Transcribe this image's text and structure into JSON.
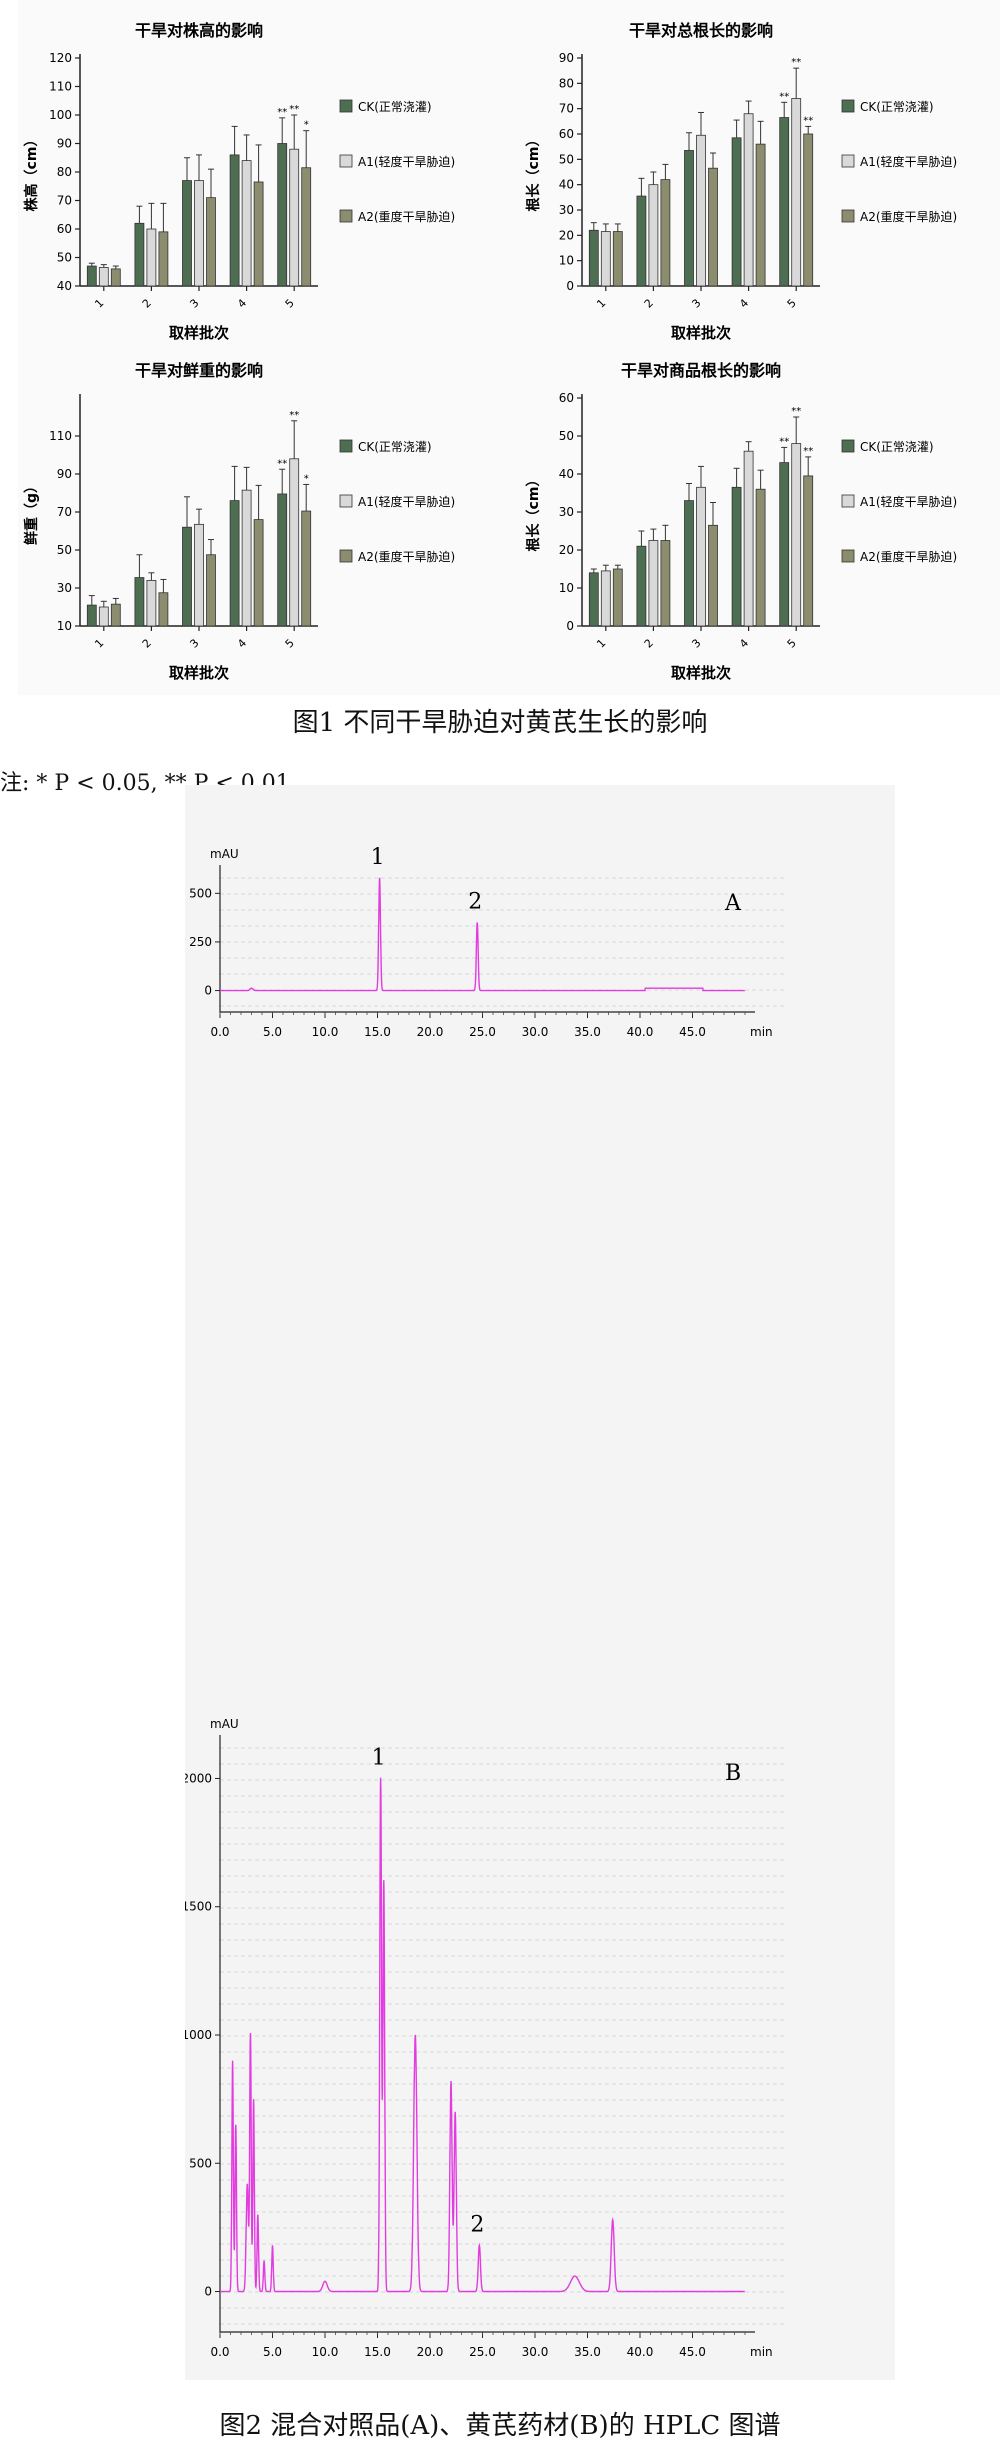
{
  "figure1": {
    "caption": "图1  不同干旱胁迫对黄芪生长的影响",
    "note": "注: * P < 0.05, ** P < 0.01",
    "legend": [
      "CK(正常浇灌)",
      "A1(轻度干旱胁迫)",
      "A2(重度干旱胁迫)"
    ],
    "colors": {
      "CK": "#4e6e52",
      "A1": "#d9d9d9",
      "A2": "#8c8c6e"
    }
  },
  "figure2": {
    "caption": "图2  混合对照品(A)、黄芪药材(B)的 HPLC 图谱",
    "colors": {
      "trace": "#e23be0"
    }
  },
  "chart_data": [
    {
      "type": "bar",
      "title": "干旱对株高的影响",
      "xlabel": "取样批次",
      "ylabel": "株高（cm）",
      "categories": [
        "1",
        "2",
        "3",
        "4",
        "5"
      ],
      "ylim": [
        40,
        120
      ],
      "yticks": [
        40,
        50,
        60,
        70,
        80,
        90,
        100,
        110,
        120
      ],
      "series": [
        {
          "name": "CK(正常浇灌)",
          "values": [
            47,
            62,
            77,
            86,
            90
          ],
          "errors": [
            1,
            6,
            8,
            10,
            9
          ],
          "marks": [
            "",
            "",
            "",
            "",
            "**"
          ]
        },
        {
          "name": "A1(轻度干旱胁迫)",
          "values": [
            46.5,
            60,
            77,
            84,
            88
          ],
          "errors": [
            1,
            9,
            9,
            9,
            12
          ],
          "marks": [
            "",
            "",
            "",
            "",
            "**"
          ]
        },
        {
          "name": "A2(重度干旱胁迫)",
          "values": [
            46,
            59,
            71,
            76.5,
            81.5
          ],
          "errors": [
            1,
            10,
            10,
            13,
            13
          ],
          "marks": [
            "",
            "",
            "",
            "",
            "*"
          ]
        }
      ]
    },
    {
      "type": "bar",
      "title": "干旱对总根长的影响",
      "xlabel": "取样批次",
      "ylabel": "根长（cm）",
      "categories": [
        "1",
        "2",
        "3",
        "4",
        "5"
      ],
      "ylim": [
        0,
        90
      ],
      "yticks": [
        0,
        10,
        20,
        30,
        40,
        50,
        60,
        70,
        80,
        90
      ],
      "series": [
        {
          "name": "CK(正常浇灌)",
          "values": [
            22,
            35.5,
            53.5,
            58.5,
            66.5
          ],
          "errors": [
            3,
            7,
            7,
            7,
            6
          ],
          "marks": [
            "",
            "",
            "",
            "",
            "**"
          ]
        },
        {
          "name": "A1(轻度干旱胁迫)",
          "values": [
            21.5,
            40,
            59.5,
            68,
            74
          ],
          "errors": [
            3,
            5,
            9,
            5,
            12
          ],
          "marks": [
            "",
            "",
            "",
            "",
            "**"
          ]
        },
        {
          "name": "A2(重度干旱胁迫)",
          "values": [
            21.5,
            42,
            46.5,
            56,
            60
          ],
          "errors": [
            3,
            6,
            6,
            9,
            3
          ],
          "marks": [
            "",
            "",
            "",
            "",
            "**"
          ]
        }
      ]
    },
    {
      "type": "bar",
      "title": "干旱对鲜重的影响",
      "xlabel": "取样批次",
      "ylabel": "鲜重（g）",
      "categories": [
        "1",
        "2",
        "3",
        "4",
        "5"
      ],
      "ylim": [
        10,
        130
      ],
      "yticks": [
        10,
        30,
        50,
        70,
        90,
        110
      ],
      "series": [
        {
          "name": "CK(正常浇灌)",
          "values": [
            21,
            35.5,
            62,
            76,
            79.5
          ],
          "errors": [
            5,
            12,
            16,
            18,
            13
          ],
          "marks": [
            "",
            "",
            "",
            "",
            "**"
          ]
        },
        {
          "name": "A1(轻度干旱胁迫)",
          "values": [
            20,
            34,
            63.5,
            81.5,
            98
          ],
          "errors": [
            3,
            4,
            8,
            12,
            20
          ],
          "marks": [
            "",
            "",
            "",
            "",
            "**"
          ]
        },
        {
          "name": "A2(重度干旱胁迫)",
          "values": [
            21.5,
            27.5,
            47.5,
            66,
            70.5
          ],
          "errors": [
            3,
            7,
            8,
            18,
            14
          ],
          "marks": [
            "",
            "",
            "",
            "",
            "*"
          ]
        }
      ]
    },
    {
      "type": "bar",
      "title": "干旱对商品根长的影响",
      "xlabel": "取样批次",
      "ylabel": "根长（cm）",
      "categories": [
        "1",
        "2",
        "3",
        "4",
        "5"
      ],
      "ylim": [
        0,
        60
      ],
      "yticks": [
        0,
        10,
        20,
        30,
        40,
        50,
        60
      ],
      "series": [
        {
          "name": "CK(正常浇灌)",
          "values": [
            14,
            21,
            33,
            36.5,
            43
          ],
          "errors": [
            1,
            4,
            4.5,
            5,
            4
          ],
          "marks": [
            "",
            "",
            "",
            "",
            "**"
          ]
        },
        {
          "name": "A1(轻度干旱胁迫)",
          "values": [
            14.5,
            22.5,
            36.5,
            46,
            48
          ],
          "errors": [
            1.5,
            3,
            5.5,
            2.5,
            7
          ],
          "marks": [
            "",
            "",
            "",
            "",
            "**"
          ]
        },
        {
          "name": "A2(重度干旱胁迫)",
          "values": [
            15,
            22.5,
            26.5,
            36,
            39.5
          ],
          "errors": [
            1,
            4,
            6,
            5,
            5
          ],
          "marks": [
            "",
            "",
            "",
            "",
            "**"
          ]
        }
      ]
    },
    {
      "type": "line",
      "panel_label": "A",
      "ylabel": "mAU",
      "xlabel": "min",
      "xlim": [
        0,
        50
      ],
      "ylim": [
        -100,
        620
      ],
      "xticks": [
        0,
        5,
        10,
        15,
        20,
        25,
        30,
        35,
        40,
        45
      ],
      "xticklabels": [
        "0.0",
        "5.0",
        "10.0",
        "15.0",
        "20.0",
        "25.0",
        "30.0",
        "35.0",
        "40.0",
        "45.0"
      ],
      "yticks": [
        0,
        250,
        500
      ],
      "baseline": 0,
      "peaks": [
        {
          "label": "1",
          "x": 15.2,
          "y": 580,
          "w": 0.12
        },
        {
          "label": "2",
          "x": 24.5,
          "y": 350,
          "w": 0.12
        },
        {
          "label": "",
          "x": 3.0,
          "y": 12,
          "w": 0.2
        }
      ],
      "plateau": {
        "x0": 40.5,
        "x1": 46.0,
        "y": 12
      }
    },
    {
      "type": "line",
      "panel_label": "B",
      "ylabel": "mAU",
      "xlabel": "min",
      "xlim": [
        0,
        50
      ],
      "ylim": [
        -150,
        2150
      ],
      "xticks": [
        0,
        5,
        10,
        15,
        20,
        25,
        30,
        35,
        40,
        45
      ],
      "xticklabels": [
        "0.0",
        "5.0",
        "10.0",
        "15.0",
        "20.0",
        "25.0",
        "30.0",
        "35.0",
        "40.0",
        "45.0"
      ],
      "yticks": [
        0,
        500,
        1000,
        1500,
        2000
      ],
      "baseline": 0,
      "peaks": [
        {
          "label": "",
          "x": 1.2,
          "y": 900,
          "w": 0.1
        },
        {
          "label": "",
          "x": 1.5,
          "y": 650,
          "w": 0.1
        },
        {
          "label": "",
          "x": 2.6,
          "y": 420,
          "w": 0.15
        },
        {
          "label": "",
          "x": 2.9,
          "y": 1000,
          "w": 0.1
        },
        {
          "label": "",
          "x": 3.2,
          "y": 750,
          "w": 0.1
        },
        {
          "label": "",
          "x": 3.6,
          "y": 300,
          "w": 0.1
        },
        {
          "label": "",
          "x": 4.2,
          "y": 120,
          "w": 0.1
        },
        {
          "label": "",
          "x": 5.0,
          "y": 180,
          "w": 0.1
        },
        {
          "label": "",
          "x": 10.0,
          "y": 40,
          "w": 0.3
        },
        {
          "label": "1",
          "x": 15.3,
          "y": 2000,
          "w": 0.12
        },
        {
          "label": "",
          "x": 15.6,
          "y": 1600,
          "w": 0.12
        },
        {
          "label": "",
          "x": 18.6,
          "y": 1000,
          "w": 0.22
        },
        {
          "label": "",
          "x": 22.0,
          "y": 820,
          "w": 0.15
        },
        {
          "label": "",
          "x": 22.4,
          "y": 700,
          "w": 0.15
        },
        {
          "label": "2",
          "x": 24.7,
          "y": 180,
          "w": 0.15
        },
        {
          "label": "",
          "x": 33.8,
          "y": 60,
          "w": 0.6
        },
        {
          "label": "",
          "x": 37.4,
          "y": 280,
          "w": 0.2
        }
      ]
    }
  ]
}
